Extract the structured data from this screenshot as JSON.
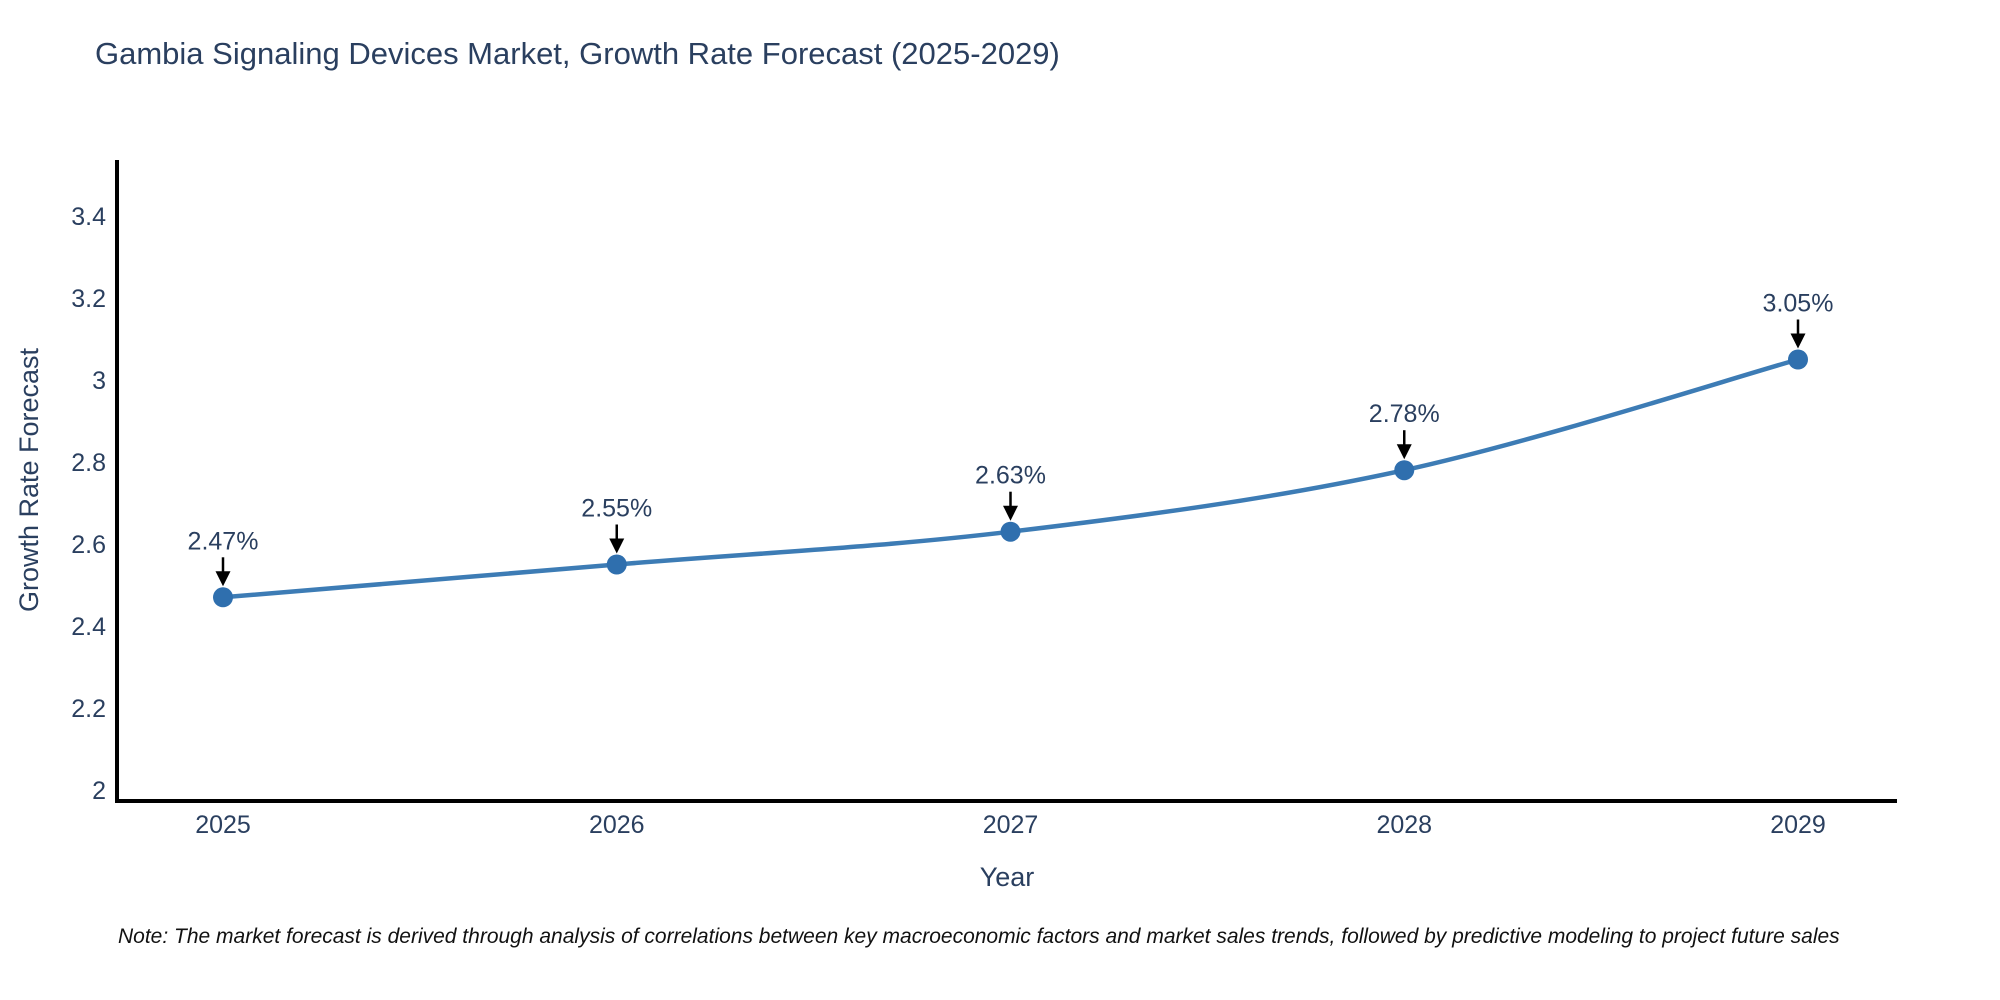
{
  "title": "Gambia Signaling Devices Market, Growth Rate Forecast (2025-2029)",
  "note": "Note: The market forecast is derived through analysis of correlations between key macroeconomic factors and market sales trends, followed by predictive modeling to project future sales",
  "chart_data": {
    "type": "line",
    "title": "Gambia Signaling Devices Market, Growth Rate Forecast (2025-2029)",
    "xlabel": "Year",
    "ylabel": "Growth Rate Forecast",
    "x": [
      2025,
      2026,
      2027,
      2028,
      2029
    ],
    "series": [
      {
        "name": "Growth Rate Forecast",
        "values": [
          2.47,
          2.55,
          2.63,
          2.78,
          3.05
        ]
      }
    ],
    "point_labels": [
      "2.47%",
      "2.55%",
      "2.63%",
      "2.78%",
      "3.05%"
    ],
    "yticks": [
      2,
      2.2,
      2.4,
      2.6,
      2.8,
      3,
      3.2,
      3.4
    ],
    "ylim": [
      1.97,
      3.54
    ],
    "grid": false,
    "legend": "none",
    "line_shape": "spline",
    "colors": {
      "line": "#3d7cb5",
      "marker": "#2f6fae",
      "axis": "#000000",
      "text": "#2a3f5f",
      "annotation_arrow": "#000000",
      "note_text": "#111111"
    }
  }
}
